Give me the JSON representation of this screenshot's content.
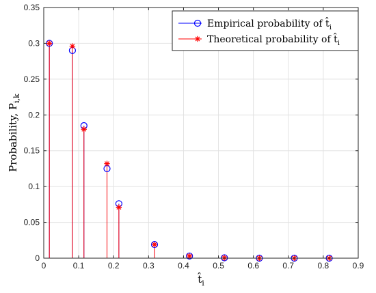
{
  "chart_data": {
    "type": "stem",
    "xlabel": "t̂",
    "xlabel_sub": "i",
    "ylabel": "Probability, P",
    "ylabel_sub": "i,k",
    "xlim": [
      0,
      0.9
    ],
    "ylim": [
      0,
      0.35
    ],
    "xticks": [
      0,
      0.1,
      0.2,
      0.3,
      0.4,
      0.5,
      0.6,
      0.7,
      0.8,
      0.9
    ],
    "yticks": [
      0,
      0.05,
      0.1,
      0.15,
      0.2,
      0.25,
      0.3,
      0.35
    ],
    "grid": true,
    "legend_position": "top-right",
    "series": [
      {
        "name": "Empirical probability of t̂",
        "name_sub": "i",
        "color": "#0000ff",
        "marker": "circle",
        "x": [
          0.016,
          0.082,
          0.115,
          0.181,
          0.215,
          0.317,
          0.417,
          0.517,
          0.617,
          0.717,
          0.817
        ],
        "y": [
          0.3,
          0.29,
          0.185,
          0.125,
          0.076,
          0.019,
          0.003,
          0.0005,
          0.0,
          0.0,
          0.0
        ]
      },
      {
        "name": "Theoretical probability of t̂",
        "name_sub": "i",
        "color": "#ff0000",
        "marker": "asterisk",
        "x": [
          0.016,
          0.082,
          0.115,
          0.181,
          0.215,
          0.317,
          0.417,
          0.517,
          0.617,
          0.717,
          0.817
        ],
        "y": [
          0.3,
          0.296,
          0.18,
          0.132,
          0.071,
          0.019,
          0.003,
          0.0005,
          0.0,
          0.0,
          0.0
        ]
      }
    ]
  }
}
